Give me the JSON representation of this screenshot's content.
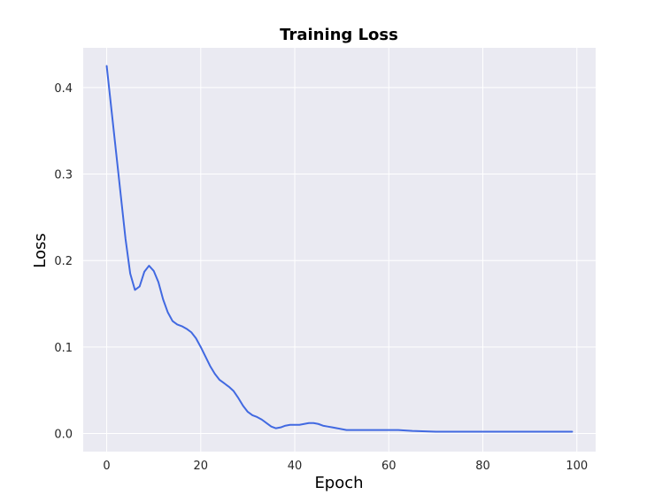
{
  "chart_data": {
    "type": "line",
    "title": "Training Loss",
    "xlabel": "Epoch",
    "ylabel": "Loss",
    "xlim": [
      -5,
      104
    ],
    "ylim": [
      -0.021,
      0.446
    ],
    "xticks": [
      0,
      20,
      40,
      60,
      80,
      100
    ],
    "yticks": [
      0.0,
      0.1,
      0.2,
      0.3,
      0.4
    ],
    "ytick_labels": [
      "0.0",
      "0.1",
      "0.2",
      "0.3",
      "0.4"
    ],
    "grid": true,
    "legend": false,
    "colors": {
      "line": "#4169e1",
      "plot_background": "#eaeaf2",
      "grid": "#ffffff"
    },
    "series": [
      {
        "points": [
          [
            0,
            0.425
          ],
          [
            1,
            0.375
          ],
          [
            2,
            0.325
          ],
          [
            3,
            0.275
          ],
          [
            4,
            0.225
          ],
          [
            5,
            0.185
          ],
          [
            6,
            0.166
          ],
          [
            7,
            0.17
          ],
          [
            8,
            0.187
          ],
          [
            9,
            0.194
          ],
          [
            10,
            0.188
          ],
          [
            11,
            0.175
          ],
          [
            12,
            0.155
          ],
          [
            13,
            0.14
          ],
          [
            14,
            0.13
          ],
          [
            15,
            0.126
          ],
          [
            16,
            0.124
          ],
          [
            17,
            0.121
          ],
          [
            18,
            0.117
          ],
          [
            19,
            0.11
          ],
          [
            20,
            0.1
          ],
          [
            21,
            0.089
          ],
          [
            22,
            0.078
          ],
          [
            23,
            0.069
          ],
          [
            24,
            0.062
          ],
          [
            25,
            0.058
          ],
          [
            26,
            0.054
          ],
          [
            27,
            0.049
          ],
          [
            28,
            0.041
          ],
          [
            29,
            0.032
          ],
          [
            30,
            0.025
          ],
          [
            31,
            0.021
          ],
          [
            32,
            0.019
          ],
          [
            33,
            0.016
          ],
          [
            34,
            0.012
          ],
          [
            35,
            0.008
          ],
          [
            36,
            0.006
          ],
          [
            37,
            0.007
          ],
          [
            38,
            0.009
          ],
          [
            39,
            0.01
          ],
          [
            40,
            0.01
          ],
          [
            41,
            0.01
          ],
          [
            42,
            0.011
          ],
          [
            43,
            0.012
          ],
          [
            44,
            0.012
          ],
          [
            45,
            0.011
          ],
          [
            46,
            0.009
          ],
          [
            47,
            0.008
          ],
          [
            48,
            0.007
          ],
          [
            49,
            0.006
          ],
          [
            50,
            0.005
          ],
          [
            51,
            0.004
          ],
          [
            52,
            0.004
          ],
          [
            55,
            0.004
          ],
          [
            60,
            0.004
          ],
          [
            62,
            0.004
          ],
          [
            65,
            0.003
          ],
          [
            70,
            0.002
          ],
          [
            75,
            0.002
          ],
          [
            80,
            0.002
          ],
          [
            85,
            0.002
          ],
          [
            90,
            0.002
          ],
          [
            95,
            0.002
          ],
          [
            99,
            0.002
          ]
        ]
      }
    ]
  }
}
